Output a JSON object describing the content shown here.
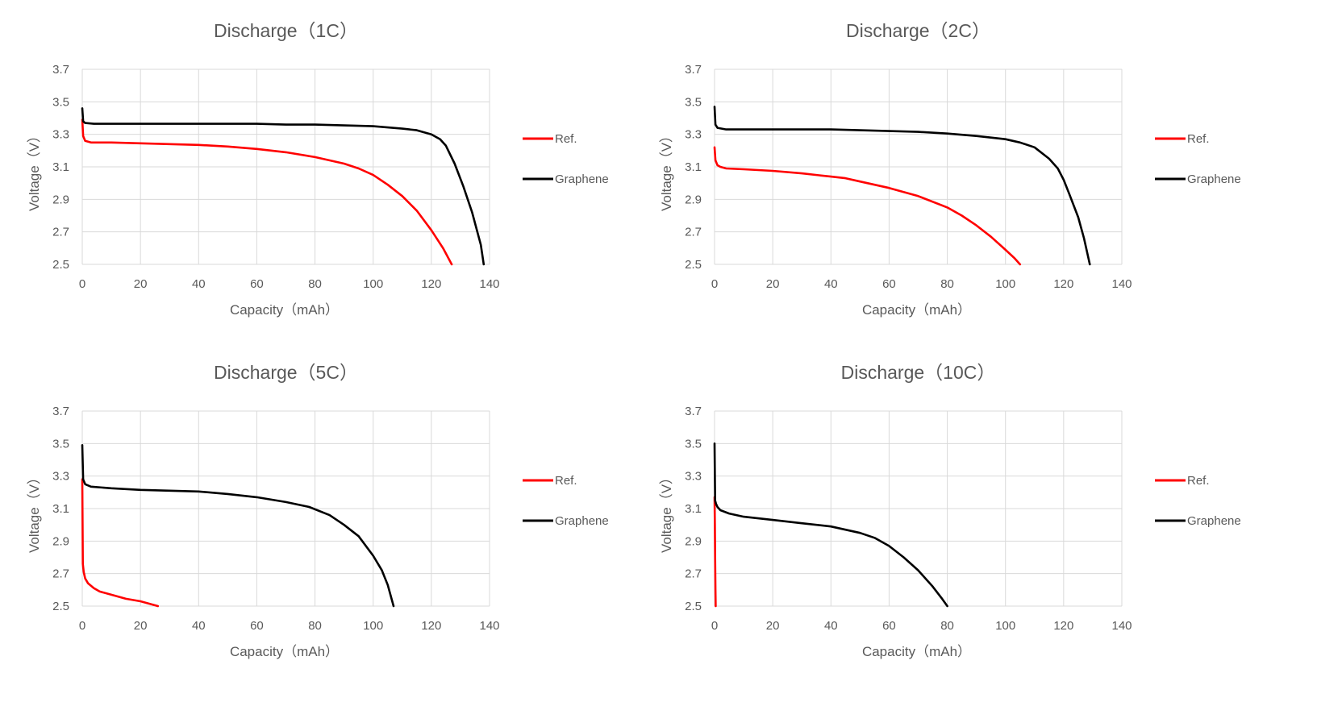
{
  "chart_data": [
    {
      "type": "line",
      "title": "Discharge（1C）",
      "xlabel": "Capacity（mAh）",
      "ylabel": "Voltage（V）",
      "xlim": [
        0,
        140
      ],
      "ylim": [
        2.5,
        3.7
      ],
      "xticks": [
        "0",
        "20",
        "40",
        "60",
        "80",
        "100",
        "120",
        "140"
      ],
      "yticks": [
        "2.5",
        "2.7",
        "2.9",
        "3.1",
        "3.3",
        "3.5",
        "3.7"
      ],
      "grid": true,
      "legend_position": "right",
      "series": [
        {
          "name": "Ref.",
          "color": "#ff0000",
          "x": [
            0,
            0.3,
            1,
            3,
            10,
            20,
            30,
            40,
            50,
            60,
            70,
            80,
            90,
            95,
            100,
            105,
            110,
            115,
            120,
            124,
            127
          ],
          "y": [
            3.39,
            3.29,
            3.26,
            3.25,
            3.25,
            3.245,
            3.24,
            3.235,
            3.225,
            3.21,
            3.19,
            3.16,
            3.12,
            3.09,
            3.05,
            2.99,
            2.92,
            2.83,
            2.71,
            2.6,
            2.5
          ]
        },
        {
          "name": "Graphene",
          "color": "#000000",
          "x": [
            0,
            0.3,
            1,
            4,
            20,
            40,
            60,
            70,
            80,
            90,
            100,
            110,
            115,
            120,
            123,
            125,
            128,
            131,
            134,
            137,
            138
          ],
          "y": [
            3.46,
            3.38,
            3.37,
            3.365,
            3.365,
            3.365,
            3.365,
            3.36,
            3.36,
            3.355,
            3.35,
            3.335,
            3.325,
            3.3,
            3.27,
            3.23,
            3.12,
            2.98,
            2.82,
            2.62,
            2.5
          ]
        }
      ]
    },
    {
      "type": "line",
      "title": "Discharge（2C）",
      "xlabel": "Capacity（mAh）",
      "ylabel": "Voltage（V）",
      "xlim": [
        0,
        140
      ],
      "ylim": [
        2.5,
        3.7
      ],
      "xticks": [
        "0",
        "20",
        "40",
        "60",
        "80",
        "100",
        "120",
        "140"
      ],
      "yticks": [
        "2.5",
        "2.7",
        "2.9",
        "3.1",
        "3.3",
        "3.5",
        "3.7"
      ],
      "grid": true,
      "legend_position": "right",
      "series": [
        {
          "name": "Ref.",
          "color": "#ff0000",
          "x": [
            0,
            0.3,
            1,
            2,
            4,
            10,
            20,
            30,
            40,
            45,
            50,
            60,
            70,
            80,
            85,
            90,
            95,
            100,
            103,
            105
          ],
          "y": [
            3.22,
            3.14,
            3.11,
            3.1,
            3.09,
            3.085,
            3.075,
            3.06,
            3.04,
            3.03,
            3.01,
            2.97,
            2.92,
            2.85,
            2.8,
            2.74,
            2.67,
            2.59,
            2.54,
            2.5
          ]
        },
        {
          "name": "Graphene",
          "color": "#000000",
          "x": [
            0,
            0.3,
            1,
            4,
            20,
            40,
            60,
            70,
            80,
            90,
            100,
            105,
            110,
            115,
            118,
            120,
            122,
            125,
            127,
            129
          ],
          "y": [
            3.47,
            3.36,
            3.34,
            3.33,
            3.33,
            3.33,
            3.32,
            3.315,
            3.305,
            3.29,
            3.27,
            3.25,
            3.22,
            3.15,
            3.09,
            3.02,
            2.93,
            2.79,
            2.66,
            2.5
          ]
        }
      ]
    },
    {
      "type": "line",
      "title": "Discharge（5C）",
      "xlabel": "Capacity（mAh）",
      "ylabel": "Voltage（V）",
      "xlim": [
        0,
        140
      ],
      "ylim": [
        2.5,
        3.7
      ],
      "xticks": [
        "0",
        "20",
        "40",
        "60",
        "80",
        "100",
        "120",
        "140"
      ],
      "yticks": [
        "2.5",
        "2.7",
        "2.9",
        "3.1",
        "3.3",
        "3.5",
        "3.7"
      ],
      "grid": true,
      "legend_position": "right",
      "series": [
        {
          "name": "Ref.",
          "color": "#ff0000",
          "x": [
            0,
            0.2,
            0.5,
            1,
            2,
            4,
            6,
            10,
            15,
            20,
            24,
            26
          ],
          "y": [
            3.28,
            2.76,
            2.71,
            2.67,
            2.64,
            2.61,
            2.59,
            2.57,
            2.545,
            2.53,
            2.51,
            2.5
          ]
        },
        {
          "name": "Graphene",
          "color": "#000000",
          "x": [
            0,
            0.3,
            1,
            3,
            10,
            20,
            30,
            40,
            50,
            60,
            70,
            78,
            85,
            90,
            95,
            100,
            103,
            105,
            107
          ],
          "y": [
            3.49,
            3.28,
            3.25,
            3.235,
            3.225,
            3.215,
            3.21,
            3.205,
            3.19,
            3.17,
            3.14,
            3.11,
            3.06,
            3.0,
            2.93,
            2.81,
            2.72,
            2.63,
            2.5
          ]
        }
      ]
    },
    {
      "type": "line",
      "title": "Discharge（10C）",
      "xlabel": "Capacity（mAh）",
      "ylabel": "Voltage（V）",
      "xlim": [
        0,
        140
      ],
      "ylim": [
        2.5,
        3.7
      ],
      "xticks": [
        "0",
        "20",
        "40",
        "60",
        "80",
        "100",
        "120",
        "140"
      ],
      "yticks": [
        "2.5",
        "2.7",
        "2.9",
        "3.1",
        "3.3",
        "3.5",
        "3.7"
      ],
      "grid": true,
      "legend_position": "right",
      "series": [
        {
          "name": "Ref.",
          "color": "#ff0000",
          "x": [
            0,
            0.1,
            0.2,
            0.3,
            0.4
          ],
          "y": [
            3.17,
            3.0,
            2.8,
            2.6,
            2.5
          ]
        },
        {
          "name": "Graphene",
          "color": "#000000",
          "x": [
            0,
            0.2,
            0.5,
            1,
            2,
            5,
            10,
            20,
            30,
            40,
            50,
            55,
            60,
            65,
            70,
            75,
            78,
            80
          ],
          "y": [
            3.5,
            3.15,
            3.13,
            3.11,
            3.09,
            3.07,
            3.05,
            3.03,
            3.01,
            2.99,
            2.95,
            2.92,
            2.87,
            2.8,
            2.72,
            2.62,
            2.55,
            2.5
          ]
        }
      ]
    }
  ]
}
